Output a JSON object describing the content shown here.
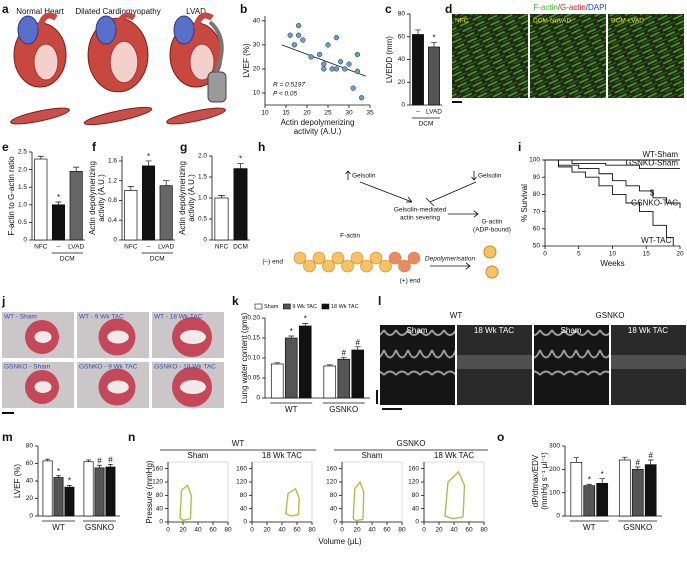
{
  "panel_letters": [
    "a",
    "b",
    "c",
    "d",
    "e",
    "f",
    "g",
    "h",
    "i",
    "j",
    "k",
    "l",
    "m",
    "n",
    "o"
  ],
  "schematic": {
    "labels": [
      "Normal Heart",
      "Dilated Cardiomyopathy",
      "LVAD"
    ]
  },
  "microscopy": {
    "stain": [
      "F-actin",
      "/G-actin",
      "/DAPI"
    ],
    "panels": [
      "NFC",
      "DCM-NoVAD",
      "DCM-LVAD"
    ]
  },
  "diagram": {
    "gelsolin_up": "Gelsolin",
    "gelsolin_down": "Gelsolin",
    "severing": [
      "Gelsolin-mediated",
      "actin severing"
    ],
    "g_actin": [
      "G-actin",
      "(ADP-bound)"
    ],
    "f_actin": "F-actin",
    "minus_end": "(–) end",
    "plus_end": "(+) end",
    "depolymerisation": "Depolymerisation"
  },
  "histology": {
    "panels": [
      "WT - Sham",
      "WT - 9 Wk TAC",
      "WT - 18 Wk TAC",
      "GSNKO - Sham",
      "GSNKO - 9 Wk TAC",
      "GSNKO - 18 Wk TAC"
    ]
  },
  "echo": {
    "groups": [
      "WT",
      "GSNKO"
    ],
    "panels": [
      "Sham",
      "18 Wk TAC",
      "Sham",
      "18 Wk TAC"
    ]
  },
  "chart_data": [
    {
      "type": "scatter",
      "ylabel": "LVEF (%)",
      "xlabel": [
        "Actin depolymerizing",
        "activity (A.U.)"
      ],
      "x": [
        16,
        17,
        18,
        18,
        19,
        21,
        23,
        24,
        24,
        25,
        26,
        27,
        27,
        28,
        29,
        30,
        31,
        32,
        32,
        33
      ],
      "values": [
        34,
        30,
        38,
        34,
        32,
        25,
        26,
        20,
        22,
        30,
        20,
        20,
        33,
        23,
        20,
        22,
        12,
        19,
        26,
        8
      ],
      "trendline": {
        "x": [
          14,
          34
        ],
        "values": [
          30,
          17
        ]
      },
      "annotations": [
        "R = 0.5197",
        "P < 0.05"
      ],
      "color": "#6b9cc4",
      "xlim": [
        10,
        35
      ],
      "xticks": [
        10,
        15,
        20,
        25,
        30,
        35
      ],
      "ylim": [
        5,
        42
      ],
      "yticks": [
        10,
        20,
        30,
        40
      ]
    },
    {
      "type": "bar",
      "ylabel": "LVEDD (mm)",
      "ylim": [
        0,
        80
      ],
      "yticks": [
        0,
        20,
        40,
        60,
        80
      ],
      "groups": [
        {
          "label": "DCM",
          "categories": [
            "–",
            "LVAD"
          ],
          "values": [
            62,
            51
          ],
          "errors": [
            4,
            4
          ],
          "colors": [
            "#111111",
            "#555555"
          ],
          "annotations": [
            null,
            "*"
          ]
        }
      ]
    },
    {
      "type": "bar",
      "ylabel": "F-actin to G-actin ratio",
      "ylim": [
        0,
        2.5
      ],
      "yticks": [
        0,
        0.5,
        {
          "value": 1,
          "label": "1.0"
        },
        1.5,
        {
          "value": 2,
          "label": "2.0"
        },
        2.5
      ],
      "groups": [
        {
          "categories": [
            "NFC"
          ],
          "values": [
            2.3
          ],
          "errors": [
            0.08
          ],
          "colors": [
            "#ffffff"
          ],
          "annotations": [
            null
          ]
        },
        {
          "label": "DCM",
          "categories": [
            "–",
            "LVAD"
          ],
          "values": [
            1.0,
            1.95
          ],
          "errors": [
            0.08,
            0.12
          ],
          "colors": [
            "#111111",
            "#666666"
          ],
          "annotations": [
            "*",
            null
          ]
        }
      ]
    },
    {
      "type": "bar",
      "ylabel": [
        "Actin depolymerizing",
        "activity (A.U.)"
      ],
      "ylim": [
        0,
        1.7
      ],
      "yticks": [
        0,
        0.4,
        0.8,
        1.2,
        1.6
      ],
      "groups": [
        {
          "categories": [
            "NFC"
          ],
          "values": [
            1.0
          ],
          "errors": [
            0.08
          ],
          "colors": [
            "#ffffff"
          ],
          "annotations": [
            null
          ]
        },
        {
          "label": "DCM",
          "categories": [
            "–",
            "LVAD"
          ],
          "values": [
            1.5,
            1.1
          ],
          "errors": [
            0.1,
            0.1
          ],
          "colors": [
            "#111111",
            "#666666"
          ],
          "annotations": [
            "*",
            null
          ]
        }
      ]
    },
    {
      "type": "bar",
      "ylabel": [
        "Actin depolymerizing",
        "activity (A.U.)"
      ],
      "ylim": [
        0,
        2.0
      ],
      "yticks": [
        0,
        0.5,
        {
          "value": 1,
          "label": "1.0"
        },
        1.5,
        {
          "value": 2,
          "label": "2.0"
        }
      ],
      "groups": [
        {
          "categories": [
            "NFC"
          ],
          "values": [
            1.0
          ],
          "errors": [
            0.06
          ],
          "colors": [
            "#ffffff"
          ],
          "annotations": [
            null
          ]
        },
        {
          "categories": [
            "DCM"
          ],
          "values": [
            1.7
          ],
          "errors": [
            0.12
          ],
          "colors": [
            "#111111"
          ],
          "annotations": [
            "*"
          ]
        }
      ]
    },
    {
      "type": "line",
      "ylabel": "% Survival",
      "xlabel": "Weeks",
      "xlim": [
        0,
        20
      ],
      "xticks": [
        0,
        5,
        10,
        15,
        20
      ],
      "ylim": [
        50,
        100
      ],
      "yticks": [
        50,
        60,
        70,
        80,
        90,
        100
      ],
      "series": [
        {
          "name": "WT-Sham",
          "color": "#111111",
          "x": [
            0,
            20
          ],
          "values": [
            100,
            100
          ]
        },
        {
          "name": "GSNKO-Sham",
          "color": "#111111",
          "x": [
            0,
            4,
            9,
            14,
            20
          ],
          "values": [
            100,
            98,
            97,
            95,
            95
          ]
        },
        {
          "name": "GSNKO-TAC",
          "color": "#111111",
          "annotation": "$",
          "x": [
            0,
            2,
            5,
            8,
            10,
            12,
            14,
            16,
            18,
            20
          ],
          "values": [
            100,
            97,
            95,
            92,
            88,
            85,
            82,
            78,
            75,
            72
          ]
        },
        {
          "name": "WT-TAC",
          "color": "#111111",
          "x": [
            0,
            2,
            4,
            6,
            8,
            10,
            12,
            14,
            16,
            18,
            19
          ],
          "values": [
            100,
            96,
            93,
            90,
            85,
            80,
            75,
            70,
            62,
            55,
            50
          ]
        }
      ]
    },
    {
      "type": "bar",
      "ylabel": "Lung water content (gms)",
      "ylim": [
        0,
        0.2
      ],
      "yticks": [
        0,
        0.05,
        {
          "value": 0.1,
          "label": "0.10"
        },
        0.15,
        {
          "value": 0.2,
          "label": "0.20"
        }
      ],
      "categories": [
        "WT",
        "GSNKO"
      ],
      "series": [
        {
          "name": "Sham",
          "color": "#ffffff",
          "values": [
            0.085,
            0.08
          ],
          "errors": [
            0.003,
            0.003
          ],
          "annotations": [
            null,
            null
          ]
        },
        {
          "name": "9 Wk TAC",
          "color": "#555555",
          "values": [
            0.15,
            0.097
          ],
          "errors": [
            0.005,
            0.005
          ],
          "annotations": [
            "*",
            "#"
          ]
        },
        {
          "name": "18 Wk TAC",
          "color": "#111111",
          "values": [
            0.18,
            0.12
          ],
          "errors": [
            0.006,
            0.008
          ],
          "annotations": [
            "*",
            "#"
          ]
        }
      ]
    },
    {
      "type": "bar",
      "ylabel": "LVEF (%)",
      "ylim": [
        0,
        80
      ],
      "yticks": [
        0,
        20,
        40,
        60,
        80
      ],
      "categories": [
        "WT",
        "GSNKO"
      ],
      "series": [
        {
          "color": "#ffffff",
          "values": [
            63,
            62
          ],
          "errors": [
            2,
            2
          ],
          "annotations": [
            null,
            null
          ]
        },
        {
          "color": "#555555",
          "values": [
            44,
            55
          ],
          "errors": [
            2,
            3
          ],
          "annotations": [
            "*",
            "#"
          ]
        },
        {
          "color": "#111111",
          "values": [
            33,
            56
          ],
          "errors": [
            2,
            3
          ],
          "annotations": [
            "*",
            "#"
          ]
        }
      ]
    },
    {
      "type": "loop",
      "ylabel": "Pressure (mmHg)",
      "xlabel": "Volume (µL)",
      "group_titles": [
        "WT",
        "GSNKO"
      ],
      "color": "#a8c24a",
      "xlim": [
        0,
        80
      ],
      "xticks": [
        0,
        20,
        40,
        60,
        80
      ],
      "ylim": [
        0,
        180
      ],
      "yticks": [
        0,
        40,
        80,
        120,
        160
      ],
      "panels": [
        {
          "title": "Sham",
          "x": [
            30,
            31,
            26,
            18,
            16,
            20,
            30
          ],
          "values": [
            10,
            80,
            110,
            95,
            12,
            5,
            10
          ]
        },
        {
          "title": "18 Wk TAC",
          "x": [
            62,
            63,
            58,
            48,
            45,
            52,
            62
          ],
          "values": [
            22,
            70,
            100,
            85,
            25,
            18,
            22
          ]
        },
        {
          "title": "Sham",
          "x": [
            28,
            29,
            24,
            17,
            15,
            19,
            28
          ],
          "values": [
            8,
            90,
            120,
            100,
            10,
            4,
            8
          ]
        },
        {
          "title": "18 Wk TAC",
          "x": [
            52,
            54,
            46,
            32,
            28,
            38,
            52
          ],
          "values": [
            15,
            110,
            150,
            120,
            18,
            10,
            15
          ]
        }
      ]
    },
    {
      "type": "bar",
      "ylabel": [
        "dP/dtmax/EDV",
        "(mmHg s⁻¹ μl⁻¹)"
      ],
      "ylim": [
        0,
        300
      ],
      "yticks": [
        0,
        100,
        200,
        300
      ],
      "categories": [
        "WT",
        "GSNKO"
      ],
      "series": [
        {
          "color": "#ffffff",
          "values": [
            230,
            240
          ],
          "errors": [
            20,
            12
          ],
          "annotations": [
            null,
            null
          ]
        },
        {
          "color": "#555555",
          "values": [
            130,
            200
          ],
          "errors": [
            6,
            10
          ],
          "annotations": [
            "*",
            "#"
          ]
        },
        {
          "color": "#111111",
          "values": [
            140,
            220
          ],
          "errors": [
            20,
            20
          ],
          "annotations": [
            "*",
            "#"
          ]
        }
      ]
    }
  ]
}
